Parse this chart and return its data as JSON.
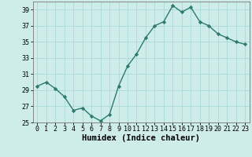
{
  "x": [
    0,
    1,
    2,
    3,
    4,
    5,
    6,
    7,
    8,
    9,
    10,
    11,
    12,
    13,
    14,
    15,
    16,
    17,
    18,
    19,
    20,
    21,
    22,
    23
  ],
  "y": [
    29.5,
    30.0,
    29.2,
    28.2,
    26.5,
    26.8,
    25.8,
    25.2,
    26.0,
    29.5,
    32.0,
    33.5,
    35.5,
    37.0,
    37.5,
    39.5,
    38.7,
    39.3,
    37.5,
    37.0,
    36.0,
    35.5,
    35.0,
    34.7
  ],
  "line_color": "#2d7a6e",
  "marker": "D",
  "marker_size": 2.2,
  "bg_color": "#ceecea",
  "grid_color": "#aad8d5",
  "xlabel": "Humidex (Indice chaleur)",
  "ylim": [
    25,
    40
  ],
  "xlim": [
    -0.5,
    23.5
  ],
  "yticks": [
    25,
    27,
    29,
    31,
    33,
    35,
    37,
    39
  ],
  "xticks": [
    0,
    1,
    2,
    3,
    4,
    5,
    6,
    7,
    8,
    9,
    10,
    11,
    12,
    13,
    14,
    15,
    16,
    17,
    18,
    19,
    20,
    21,
    22,
    23
  ],
  "xlabel_fontsize": 7.5,
  "tick_fontsize": 6.0,
  "line_width": 1.0
}
